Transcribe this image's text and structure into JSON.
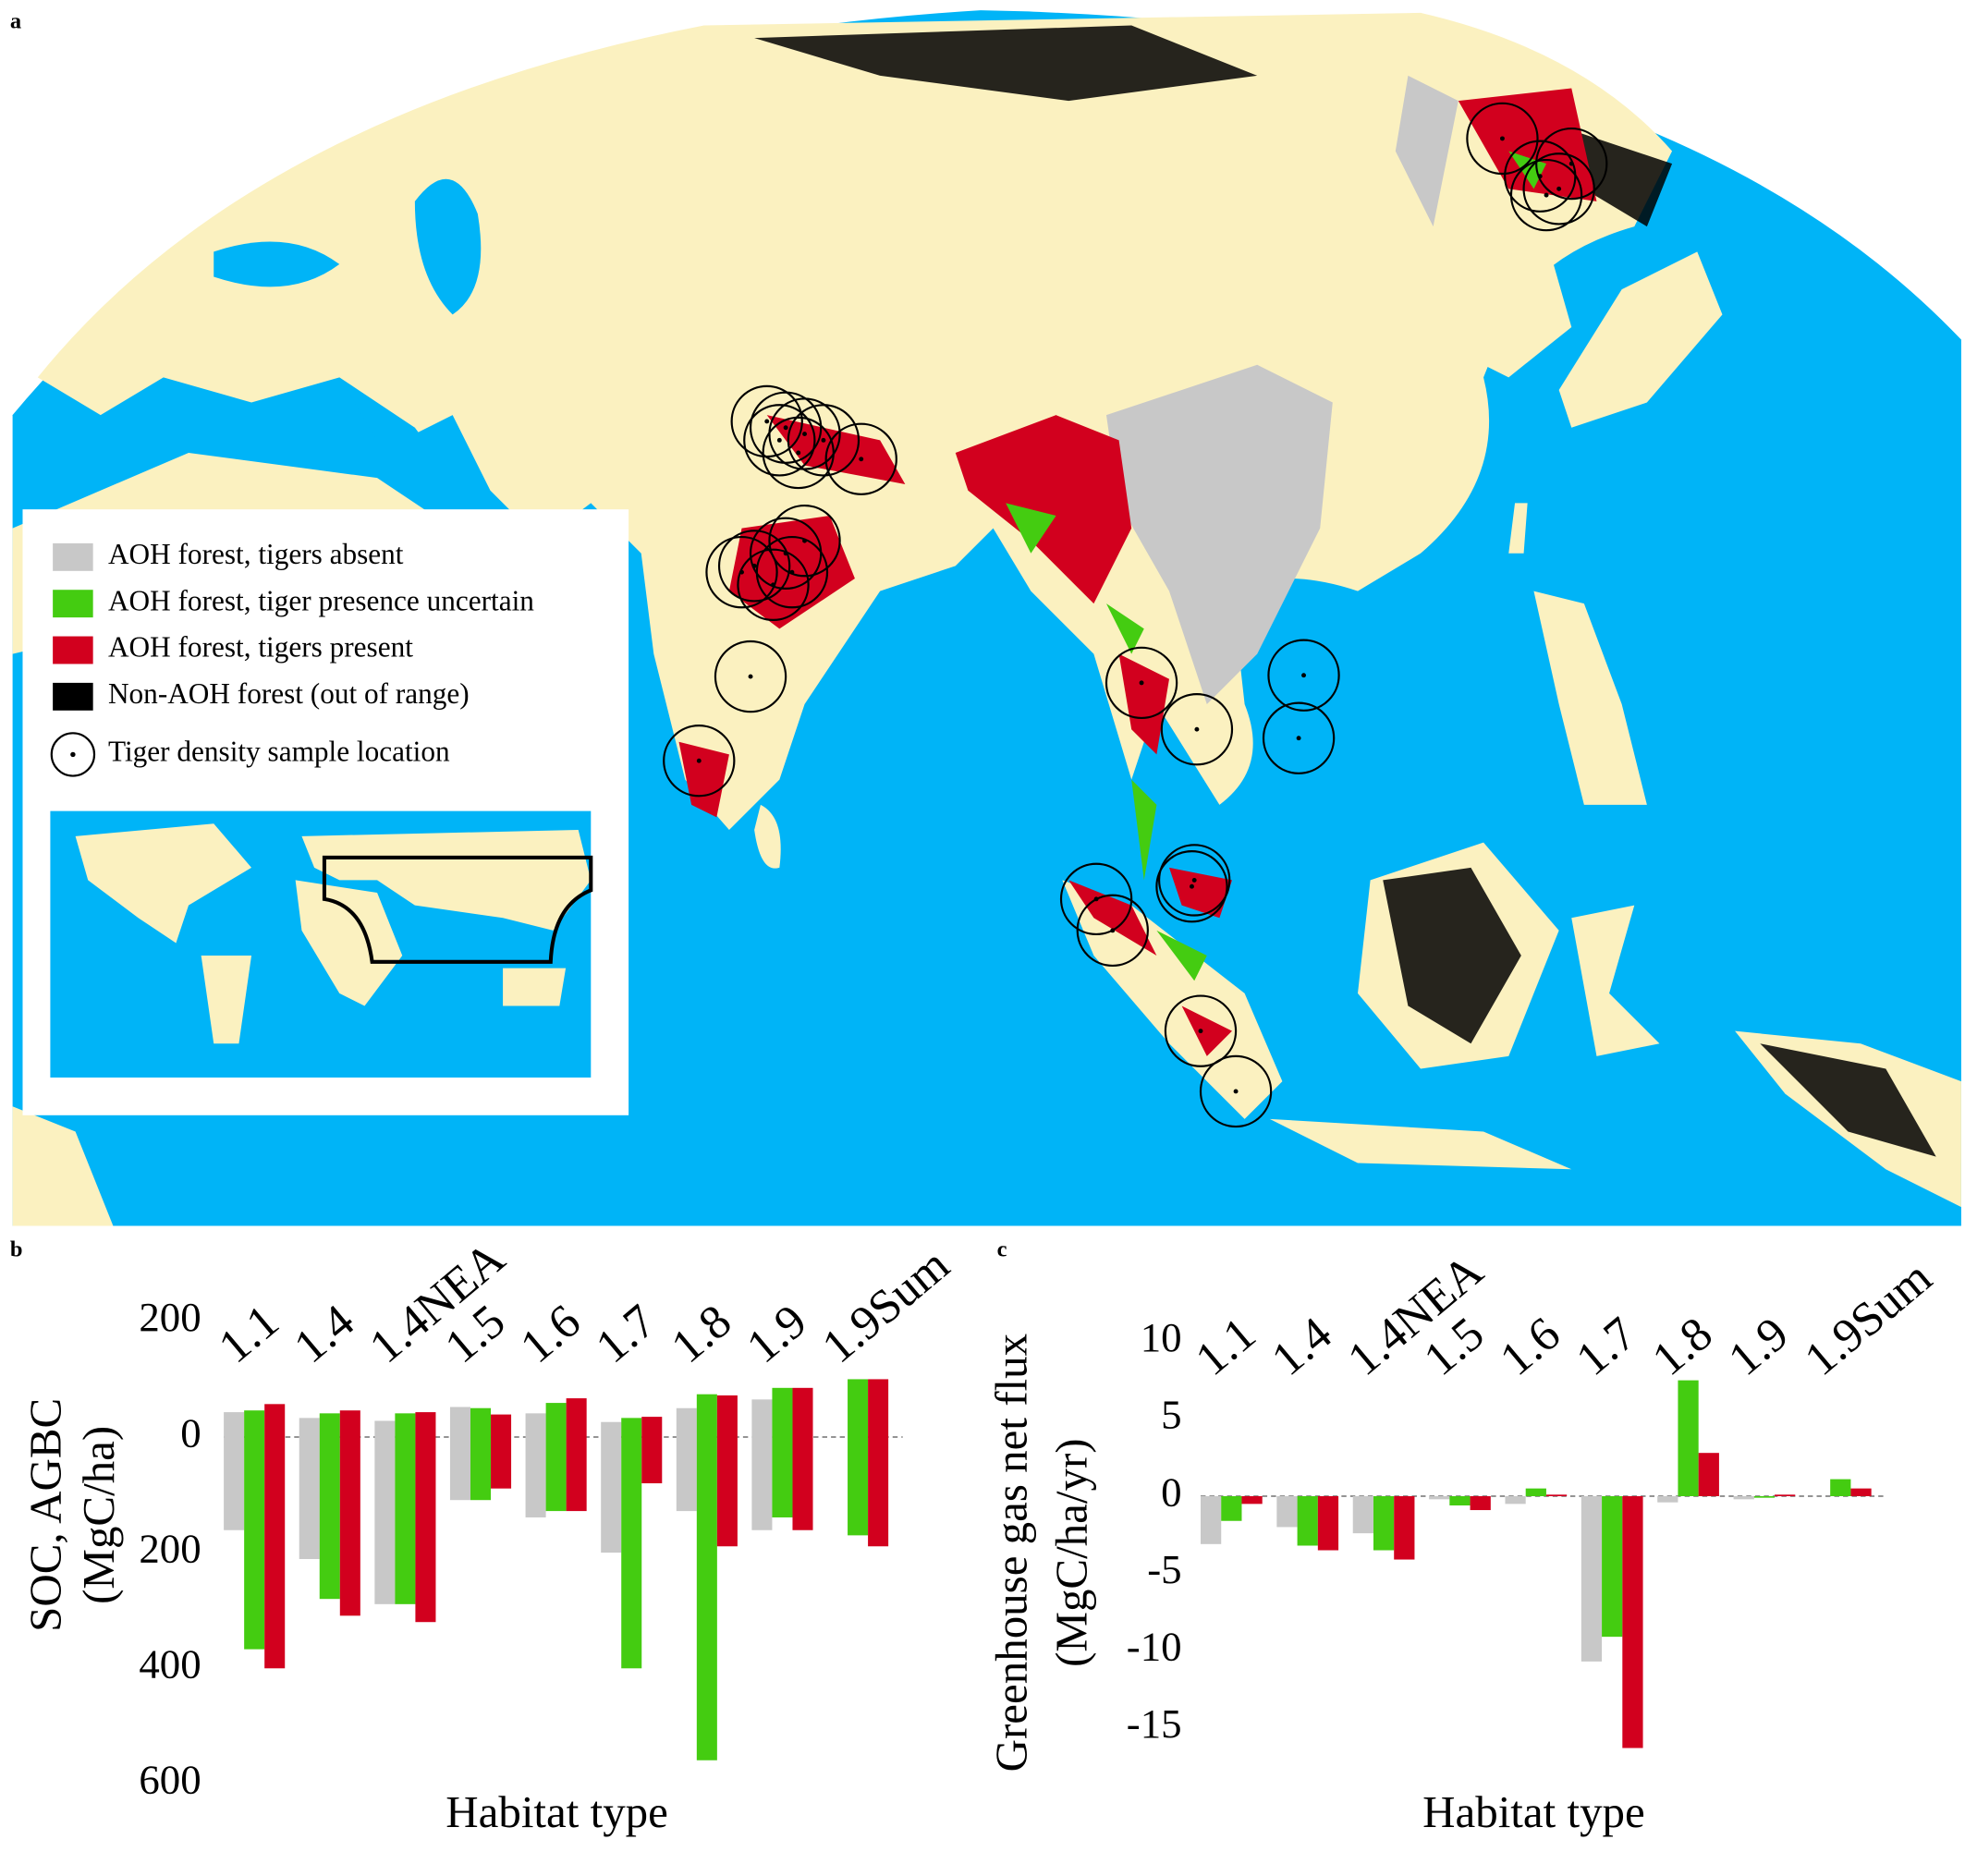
{
  "map": {
    "panel_label": "a",
    "legend": [
      "AOH forest, tigers absent",
      "AOH forest, tiger presence uncertain",
      "AOH forest, tigers present",
      "Non-AOH forest (out of range)",
      "Tiger density sample location"
    ],
    "legend_colors": [
      "#c8c8c8",
      "#44cc11",
      "#d2001e",
      "#000000"
    ]
  },
  "chart_data": [
    {
      "type": "bar",
      "panel_label": "b",
      "ylabel": [
        "SOC, AGBC",
        "(MgC/ha)"
      ],
      "xlabel": "Habitat type",
      "categories": [
        "1.1",
        "1.4",
        "1.4NEA",
        "1.5",
        "1.6",
        "1.7",
        "1.8",
        "1.9",
        "1.9Sum"
      ],
      "series": [
        {
          "name": "AOH forest, tigers absent",
          "color": "#c8c8c8",
          "values": [
            [
              43,
              -161
            ],
            [
              33,
              -211
            ],
            [
              28,
              -289
            ],
            [
              52,
              -109
            ],
            [
              41,
              -139
            ],
            [
              26,
              -200
            ],
            [
              50,
              -128
            ],
            [
              65,
              -161
            ],
            null
          ]
        },
        {
          "name": "AOH forest, tiger presence uncertain",
          "color": "#44cc11",
          "values": [
            [
              46,
              -367
            ],
            [
              41,
              -280
            ],
            [
              41,
              -289
            ],
            [
              50,
              -109
            ],
            [
              59,
              -128
            ],
            [
              33,
              -400
            ],
            [
              74,
              -559
            ],
            [
              85,
              -139
            ],
            [
              100,
              -170
            ]
          ]
        },
        {
          "name": "AOH forest, tigers present",
          "color": "#d2001e",
          "values": [
            [
              57,
              -400
            ],
            [
              46,
              -309
            ],
            [
              43,
              -320
            ],
            [
              39,
              -89
            ],
            [
              67,
              -128
            ],
            [
              35,
              -80
            ],
            [
              72,
              -189
            ],
            [
              85,
              -161
            ],
            [
              100,
              -189
            ]
          ]
        }
      ],
      "ylim": [
        -600,
        200
      ],
      "yticks": [
        200,
        0,
        {
          "value": -200,
          "label": "200"
        },
        {
          "value": -400,
          "label": "400"
        },
        {
          "value": -600,
          "label": "600"
        }
      ]
    },
    {
      "type": "bar",
      "panel_label": "c",
      "ylabel": [
        "Greenhouse gas net flux",
        "(MgC/ha/yr)"
      ],
      "xlabel": "Habitat type",
      "categories": [
        "1.1",
        "1.4",
        "1.4NEA",
        "1.5",
        "1.6",
        "1.7",
        "1.8",
        "1.9",
        "1.9Sum"
      ],
      "series": [
        {
          "color": "#c8c8c8",
          "values": [
            -3.1,
            -2.0,
            -2.4,
            -0.2,
            -0.5,
            -10.7,
            -0.4,
            -0.2,
            null
          ]
        },
        {
          "color": "#44cc11",
          "values": [
            -1.6,
            -3.2,
            -3.5,
            -0.6,
            0.5,
            -9.1,
            7.5,
            -0.1,
            1.1
          ]
        },
        {
          "color": "#d2001e",
          "values": [
            -0.5,
            -3.5,
            -4.1,
            -0.9,
            0.1,
            -16.3,
            2.8,
            0.1,
            0.5
          ]
        }
      ],
      "ylim": [
        -17,
        10.5
      ],
      "yticks": [
        10,
        5,
        0,
        -5,
        -10,
        -15
      ]
    }
  ]
}
